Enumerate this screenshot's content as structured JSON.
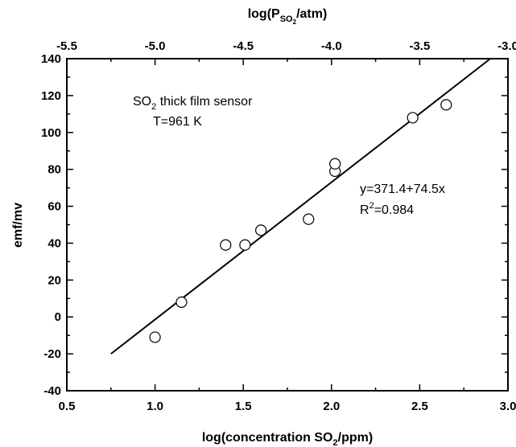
{
  "chart_data": {
    "type": "scatter",
    "xlabel": "log(concentration SO",
    "xlabel_sub": "2",
    "xlabel_tail": "/ppm)",
    "ylabel": "emf/mv",
    "top_xlabel": "log(P",
    "top_xlabel_sub": "SO",
    "top_xlabel_subsub": "2",
    "top_xlabel_tail": "/atm)",
    "xlim": [
      0.5,
      3.0
    ],
    "ylim": [
      -40,
      140
    ],
    "top_xlim": [
      -5.5,
      -3.0
    ],
    "x_ticks": [
      "0.5",
      "1.0",
      "1.5",
      "2.0",
      "2.5",
      "3.0"
    ],
    "y_ticks": [
      "-40",
      "-20",
      "0",
      "20",
      "40",
      "60",
      "80",
      "100",
      "120",
      "140"
    ],
    "top_x_ticks": [
      "-5.5",
      "-5.0",
      "-4.5",
      "-4.0",
      "-3.5",
      "-3.0"
    ],
    "points": [
      {
        "x": 1.0,
        "y": -11
      },
      {
        "x": 1.15,
        "y": 8
      },
      {
        "x": 1.4,
        "y": 39
      },
      {
        "x": 1.51,
        "y": 39
      },
      {
        "x": 1.6,
        "y": 47
      },
      {
        "x": 1.87,
        "y": 53
      },
      {
        "x": 2.02,
        "y": 79
      },
      {
        "x": 2.02,
        "y": 83
      },
      {
        "x": 2.46,
        "y": 108
      },
      {
        "x": 2.65,
        "y": 115
      }
    ],
    "fit_line": {
      "x": [
        0.75,
        2.9
      ],
      "y": [
        -20,
        140
      ]
    },
    "annotations": {
      "sensor_pre": "SO",
      "sensor_sub": "2",
      "sensor_post": " thick film sensor",
      "temperature": "T=961 K",
      "equation": "y=371.4+74.5x",
      "r2_pre": "R",
      "r2_sup": "2",
      "r2_post": "=0.984"
    },
    "grid": false,
    "legend": "none"
  }
}
